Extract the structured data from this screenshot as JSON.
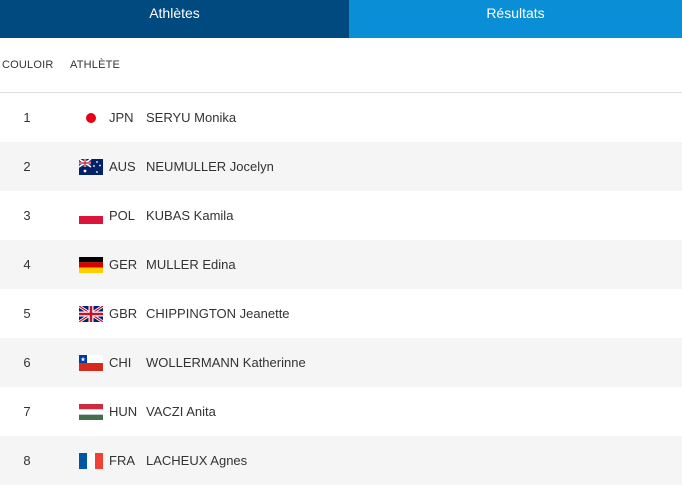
{
  "tabs": {
    "athletes": "Athlètes",
    "results": "Résultats"
  },
  "columns": {
    "lane": "COULOIR",
    "athlete": "ATHLÈTE"
  },
  "rows": [
    {
      "lane": "1",
      "noc": "JPN",
      "name": "SERYU Monika",
      "flag": "jpn-flag-icon"
    },
    {
      "lane": "2",
      "noc": "AUS",
      "name": "NEUMULLER Jocelyn",
      "flag": "aus-flag-icon"
    },
    {
      "lane": "3",
      "noc": "POL",
      "name": "KUBAS Kamila",
      "flag": "pol-flag-icon"
    },
    {
      "lane": "4",
      "noc": "GER",
      "name": "MULLER Edina",
      "flag": "ger-flag-icon"
    },
    {
      "lane": "5",
      "noc": "GBR",
      "name": "CHIPPINGTON Jeanette",
      "flag": "gbr-flag-icon"
    },
    {
      "lane": "6",
      "noc": "CHI",
      "name": "WOLLERMANN Katherinne",
      "flag": "chi-flag-icon"
    },
    {
      "lane": "7",
      "noc": "HUN",
      "name": "VACZI Anita",
      "flag": "hun-flag-icon"
    },
    {
      "lane": "8",
      "noc": "FRA",
      "name": "LACHEUX Agnes",
      "flag": "fra-flag-icon"
    }
  ],
  "colors": {
    "tab_athletes_bg": "#004a80",
    "tab_results_bg": "#0a8fd6",
    "row_alt_bg": "#f5f5f5"
  }
}
